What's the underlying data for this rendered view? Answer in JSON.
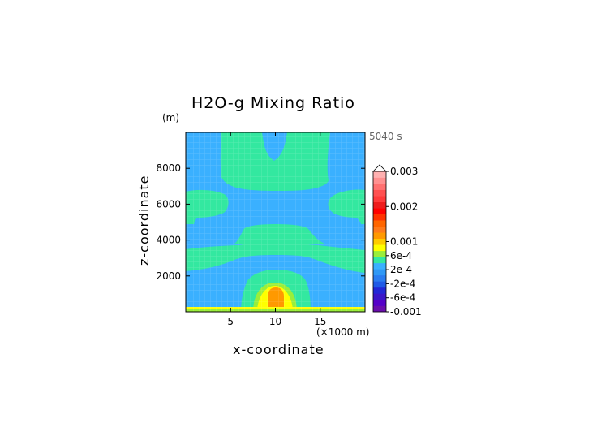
{
  "chart_data": {
    "type": "heatmap",
    "title": "H2O-g Mixing Ratio",
    "time_label": "5040 s",
    "x": {
      "label": "x-coordinate",
      "unit_label": "(×1000 m)",
      "range": [
        0,
        20
      ],
      "ticks": [
        5,
        10,
        15
      ],
      "tick_labels": [
        "5",
        "10",
        "15"
      ]
    },
    "y": {
      "label": "z-coordinate",
      "unit_label": "(m)",
      "range": [
        0,
        10000
      ],
      "ticks": [
        2000,
        4000,
        6000,
        8000
      ],
      "tick_labels": [
        "2000",
        "4000",
        "6000",
        "8000"
      ]
    },
    "colorbar": {
      "labels": [
        "0.003",
        "0.002",
        "0.001",
        "6e-4",
        "2e-4",
        "-2e-4",
        "-6e-4",
        "-0.001"
      ],
      "label_values": [
        0.003,
        0.002,
        0.001,
        0.0006,
        0.0002,
        -0.0002,
        -0.0006,
        -0.001
      ],
      "levels": [
        {
          "value": -0.001,
          "color": "#6a0dad"
        },
        {
          "value": -0.0008,
          "color": "#5500c8"
        },
        {
          "value": -0.0007,
          "color": "#3a16c8"
        },
        {
          "value": -0.0006,
          "color": "#2227d6"
        },
        {
          "value": -0.0004,
          "color": "#1f5ae6"
        },
        {
          "value": -0.0003,
          "color": "#2a7cf0"
        },
        {
          "value": -0.0002,
          "color": "#2f98f5"
        },
        {
          "value": 0.0,
          "color": "#3ab0ff"
        },
        {
          "value": 0.0002,
          "color": "#33e8a0"
        },
        {
          "value": 0.0004,
          "color": "#9aee3a"
        },
        {
          "value": 0.0006,
          "color": "#ffff00"
        },
        {
          "value": 0.0008,
          "color": "#ffcc00"
        },
        {
          "value": 0.001,
          "color": "#ff9900"
        },
        {
          "value": 0.0012,
          "color": "#ff7a1a"
        },
        {
          "value": 0.0014,
          "color": "#ff6600"
        },
        {
          "value": 0.0016,
          "color": "#ff3300"
        },
        {
          "value": 0.0018,
          "color": "#ff0000"
        },
        {
          "value": 0.002,
          "color": "#ee1c1c"
        },
        {
          "value": 0.0022,
          "color": "#ff3a3a"
        },
        {
          "value": 0.0024,
          "color": "#ff5050"
        },
        {
          "value": 0.0026,
          "color": "#ff7070"
        },
        {
          "value": 0.0028,
          "color": "#ff9090"
        },
        {
          "value": 0.003,
          "color": "#ffb0b0"
        }
      ]
    },
    "field_regions": [
      {
        "label": "background",
        "value": 0.0,
        "color": "#3ab0ff"
      },
      {
        "label": "green band",
        "value": 0.0002,
        "color": "#33e8a0"
      },
      {
        "label": "yellow-green",
        "value": 0.0004,
        "color": "#9aee3a"
      },
      {
        "label": "yellow",
        "value": 0.0006,
        "color": "#ffff00"
      },
      {
        "label": "orange core",
        "value": 0.001,
        "color": "#ff9900"
      }
    ]
  }
}
